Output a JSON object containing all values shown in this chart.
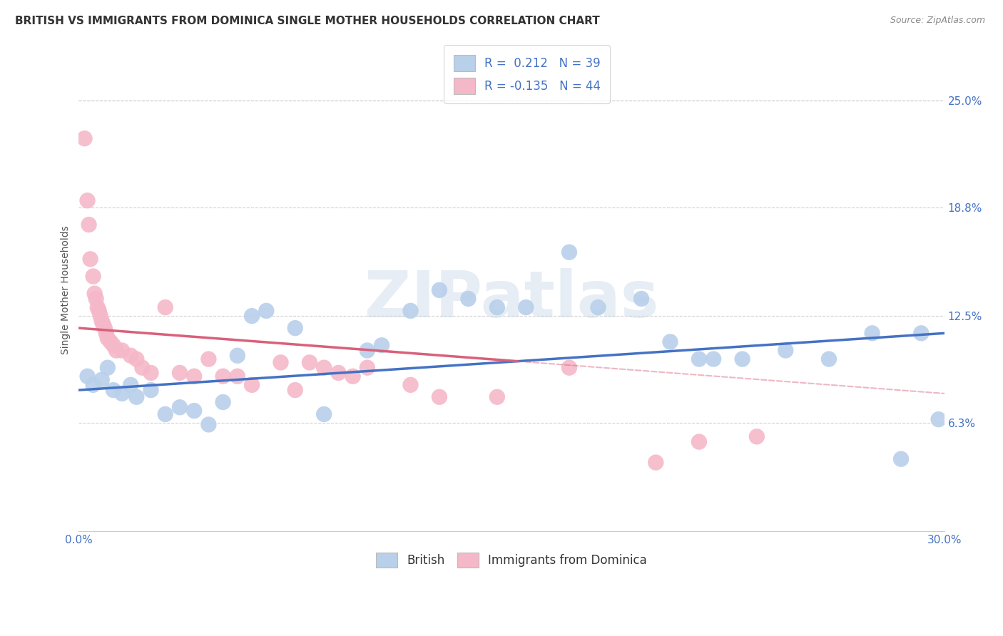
{
  "title": "BRITISH VS IMMIGRANTS FROM DOMINICA SINGLE MOTHER HOUSEHOLDS CORRELATION CHART",
  "source": "Source: ZipAtlas.com",
  "ylabel_label": "Single Mother Households",
  "x_min": 0.0,
  "x_max": 30.0,
  "y_min": 0.0,
  "y_max": 28.0,
  "y_ticks": [
    6.3,
    12.5,
    18.8,
    25.0
  ],
  "x_ticks": [
    0.0,
    30.0
  ],
  "british_R": 0.212,
  "british_N": 39,
  "dominica_R": -0.135,
  "dominica_N": 44,
  "british_color": "#b8d0ea",
  "dominica_color": "#f5b8c9",
  "british_line_color": "#4472c4",
  "dominica_line_color": "#d9607a",
  "text_color": "#4472c4",
  "grid_color": "#cccccc",
  "background_color": "#ffffff",
  "british_scatter": [
    [
      0.3,
      9.0
    ],
    [
      0.5,
      8.5
    ],
    [
      0.8,
      8.8
    ],
    [
      1.0,
      9.5
    ],
    [
      1.2,
      8.2
    ],
    [
      1.5,
      8.0
    ],
    [
      1.8,
      8.5
    ],
    [
      2.0,
      7.8
    ],
    [
      2.5,
      8.2
    ],
    [
      3.0,
      6.8
    ],
    [
      3.5,
      7.2
    ],
    [
      4.0,
      7.0
    ],
    [
      4.5,
      6.2
    ],
    [
      5.0,
      7.5
    ],
    [
      5.5,
      10.2
    ],
    [
      6.0,
      12.5
    ],
    [
      6.5,
      12.8
    ],
    [
      7.5,
      11.8
    ],
    [
      8.5,
      6.8
    ],
    [
      10.0,
      10.5
    ],
    [
      10.5,
      10.8
    ],
    [
      11.5,
      12.8
    ],
    [
      12.5,
      14.0
    ],
    [
      13.5,
      13.5
    ],
    [
      14.5,
      13.0
    ],
    [
      15.5,
      13.0
    ],
    [
      17.0,
      16.2
    ],
    [
      18.0,
      13.0
    ],
    [
      19.5,
      13.5
    ],
    [
      20.5,
      11.0
    ],
    [
      22.0,
      10.0
    ],
    [
      23.0,
      10.0
    ],
    [
      24.5,
      10.5
    ],
    [
      26.0,
      10.0
    ],
    [
      27.5,
      11.5
    ],
    [
      28.5,
      4.2
    ],
    [
      29.2,
      11.5
    ],
    [
      29.8,
      6.5
    ],
    [
      21.5,
      10.0
    ]
  ],
  "dominica_scatter": [
    [
      0.2,
      22.8
    ],
    [
      0.3,
      19.2
    ],
    [
      0.35,
      17.8
    ],
    [
      0.4,
      15.8
    ],
    [
      0.5,
      14.8
    ],
    [
      0.55,
      13.8
    ],
    [
      0.6,
      13.5
    ],
    [
      0.65,
      13.0
    ],
    [
      0.7,
      12.8
    ],
    [
      0.75,
      12.5
    ],
    [
      0.8,
      12.2
    ],
    [
      0.85,
      12.0
    ],
    [
      0.9,
      11.8
    ],
    [
      0.95,
      11.5
    ],
    [
      1.0,
      11.2
    ],
    [
      1.1,
      11.0
    ],
    [
      1.2,
      10.8
    ],
    [
      1.3,
      10.5
    ],
    [
      1.5,
      10.5
    ],
    [
      1.8,
      10.2
    ],
    [
      2.0,
      10.0
    ],
    [
      2.2,
      9.5
    ],
    [
      2.5,
      9.2
    ],
    [
      3.0,
      13.0
    ],
    [
      3.5,
      9.2
    ],
    [
      4.0,
      9.0
    ],
    [
      4.5,
      10.0
    ],
    [
      5.0,
      9.0
    ],
    [
      5.5,
      9.0
    ],
    [
      6.0,
      8.5
    ],
    [
      7.0,
      9.8
    ],
    [
      7.5,
      8.2
    ],
    [
      8.0,
      9.8
    ],
    [
      8.5,
      9.5
    ],
    [
      9.0,
      9.2
    ],
    [
      9.5,
      9.0
    ],
    [
      10.0,
      9.5
    ],
    [
      11.5,
      8.5
    ],
    [
      12.5,
      7.8
    ],
    [
      14.5,
      7.8
    ],
    [
      17.0,
      9.5
    ],
    [
      20.0,
      4.0
    ],
    [
      21.5,
      5.2
    ],
    [
      23.5,
      5.5
    ]
  ],
  "british_trend_x0": 0.0,
  "british_trend_y0": 8.2,
  "british_trend_x1": 30.0,
  "british_trend_y1": 11.5,
  "dominica_trend_x0": 0.0,
  "dominica_trend_y0": 11.8,
  "dominica_trend_x1": 30.0,
  "dominica_trend_y1": 8.0,
  "watermark": "ZIPatlas",
  "title_fontsize": 11,
  "label_fontsize": 10,
  "tick_fontsize": 11,
  "legend_fontsize": 12
}
